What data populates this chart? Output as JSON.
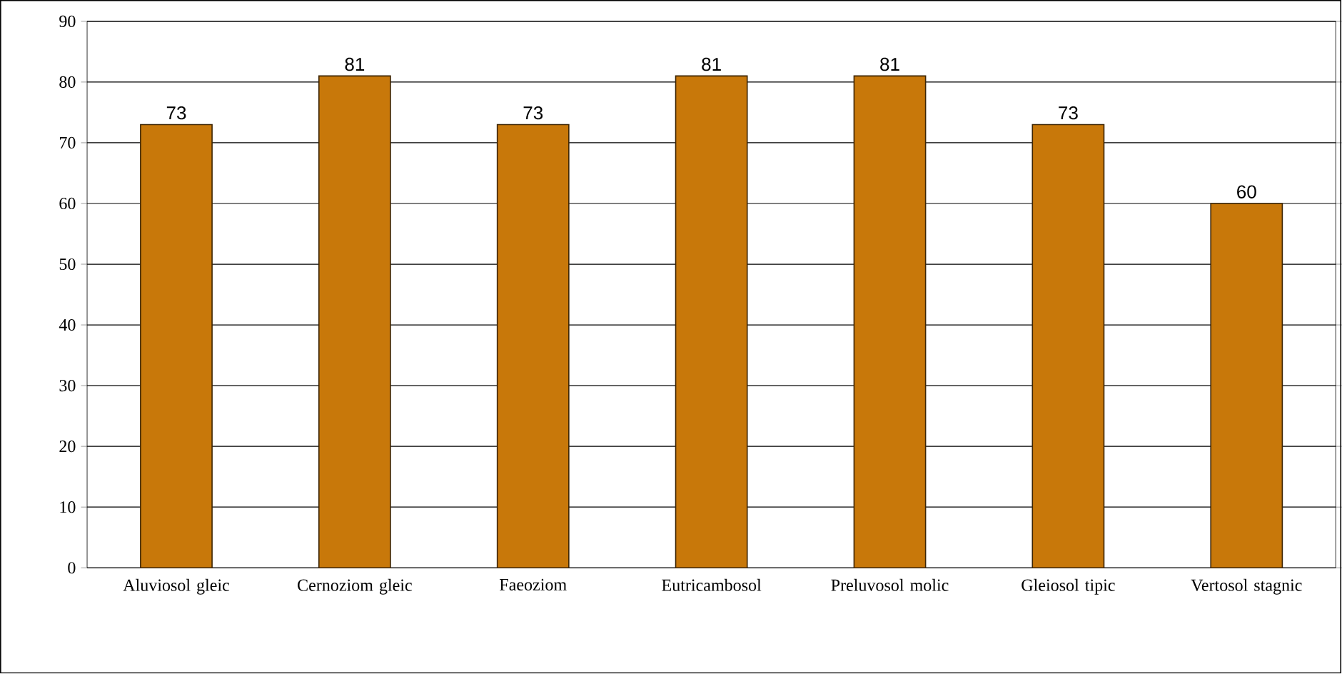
{
  "chart_data": {
    "type": "bar",
    "categories": [
      "Aluviosol gleic",
      "Cernoziom gleic",
      "Faeoziom",
      "Eutricambosol",
      "Preluvosol molic",
      "Gleiosol tipic",
      "Vertosol stagnic"
    ],
    "values": [
      73,
      81,
      73,
      81,
      81,
      73,
      60
    ],
    "color": "#c8780a",
    "ylim": [
      0,
      90
    ],
    "yticks": [
      0,
      10,
      20,
      30,
      40,
      50,
      60,
      70,
      80,
      90
    ],
    "grid": "y",
    "data_labels": true
  }
}
